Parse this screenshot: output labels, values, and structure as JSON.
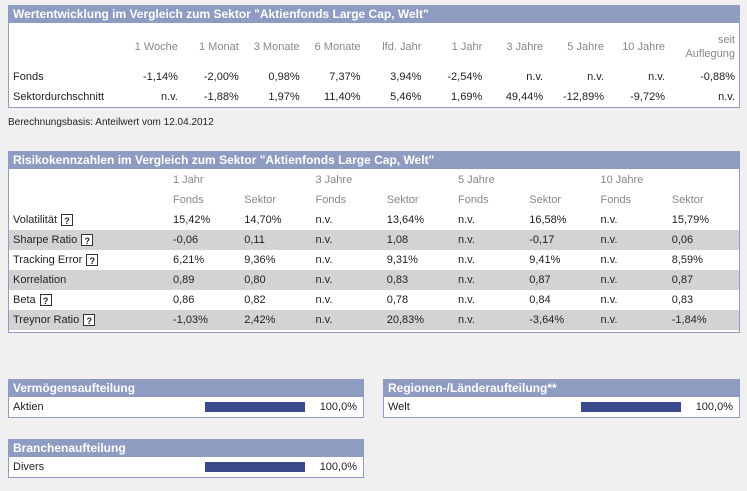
{
  "perf": {
    "title": "Wertentwicklung im Vergleich zum Sektor \"Aktienfonds Large Cap, Welt\"",
    "headers": [
      "1 Woche",
      "1 Monat",
      "3 Monate",
      "6 Monate",
      "lfd. Jahr",
      "1 Jahr",
      "3 Jahre",
      "5 Jahre",
      "10 Jahre"
    ],
    "header_last_1": "seit",
    "header_last_2": "Auflegung",
    "rows": [
      {
        "label": "Fonds",
        "values": [
          "-1,14%",
          "-2,00%",
          "0,98%",
          "7,37%",
          "3,94%",
          "-2,54%",
          "n.v.",
          "n.v.",
          "n.v.",
          "-0,88%"
        ]
      },
      {
        "label": "Sektordurchschnitt",
        "values": [
          "n.v.",
          "-1,88%",
          "1,97%",
          "11,40%",
          "5,46%",
          "1,69%",
          "49,44%",
          "-12,89%",
          "-9,72%",
          "n.v."
        ]
      }
    ]
  },
  "basis_text": "Berechnungsbasis: Anteilwert vom 12.04.2012",
  "risk": {
    "title": "Risikokennzahlen im Vergleich zum Sektor \"Aktienfonds Large Cap, Welt\"",
    "periods": [
      "1 Jahr",
      "3 Jahre",
      "5 Jahre",
      "10 Jahre"
    ],
    "sub": [
      "Fonds",
      "Sektor",
      "Fonds",
      "Sektor",
      "Fonds",
      "Sektor",
      "Fonds",
      "Sektor"
    ],
    "help_glyph": "?",
    "rows": [
      {
        "label": "Volatilität",
        "help": true,
        "values": [
          "15,42%",
          "14,70%",
          "n.v.",
          "13,64%",
          "n.v.",
          "16,58%",
          "n.v.",
          "15,79%"
        ]
      },
      {
        "label": "Sharpe Ratio",
        "help": true,
        "values": [
          "-0,06",
          "0,11",
          "n.v.",
          "1,08",
          "n.v.",
          "-0,17",
          "n.v.",
          "0,06"
        ]
      },
      {
        "label": "Tracking Error",
        "help": true,
        "values": [
          "6,21%",
          "9,36%",
          "n.v.",
          "9,31%",
          "n.v.",
          "9,41%",
          "n.v.",
          "8,59%"
        ]
      },
      {
        "label": "Korrelation",
        "help": false,
        "values": [
          "0,89",
          "0,80",
          "n.v.",
          "0,83",
          "n.v.",
          "0,87",
          "n.v.",
          "0,87"
        ]
      },
      {
        "label": "Beta",
        "help": true,
        "values": [
          "0,86",
          "0,82",
          "n.v.",
          "0,78",
          "n.v.",
          "0,84",
          "n.v.",
          "0,83"
        ]
      },
      {
        "label": "Treynor Ratio",
        "help": true,
        "values": [
          "-1,03%",
          "2,42%",
          "n.v.",
          "20,83%",
          "n.v.",
          "-3,64%",
          "n.v.",
          "-1,84%"
        ]
      }
    ]
  },
  "vermoegen": {
    "title": "Vermögensaufteilung",
    "items": [
      {
        "label": "Aktien",
        "value": "100,0%",
        "fraction": 1.0
      }
    ]
  },
  "regionen": {
    "title": "Regionen-/Länderaufteilung**",
    "items": [
      {
        "label": "Welt",
        "value": "100,0%",
        "fraction": 1.0
      }
    ]
  },
  "branchen": {
    "title": "Branchenaufteilung",
    "items": [
      {
        "label": "Divers",
        "value": "100,0%",
        "fraction": 1.0
      }
    ]
  },
  "colors": {
    "header_bg": "#8e9cc2",
    "bar": "#3a4a8a",
    "row_grey": "#d3d3d3"
  }
}
